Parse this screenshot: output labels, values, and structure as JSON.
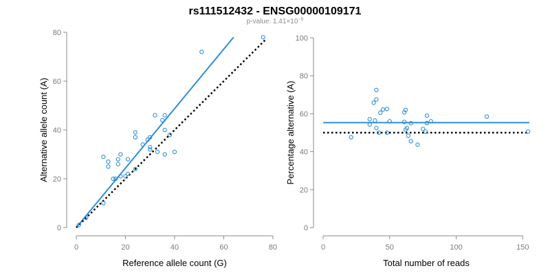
{
  "figure": {
    "title": "rs111512432 - ENSG00000109171",
    "subtitle_prefix": "p-value: 1.41×10",
    "subtitle_exponent": "−5"
  },
  "chart_data": [
    {
      "type": "scatter",
      "xlabel": "Reference allele count (G)",
      "ylabel": "Alternative allele count (A)",
      "xlim": [
        0,
        80
      ],
      "ylim": [
        0,
        80
      ],
      "xticks": [
        0,
        20,
        40,
        60,
        80
      ],
      "yticks": [
        0,
        20,
        40,
        60,
        80
      ],
      "grid": false,
      "point_color": "#2b8ddc",
      "points": [
        {
          "x": 1,
          "y": 1
        },
        {
          "x": 4,
          "y": 4
        },
        {
          "x": 11,
          "y": 10
        },
        {
          "x": 11,
          "y": 29
        },
        {
          "x": 13,
          "y": 27
        },
        {
          "x": 13,
          "y": 25
        },
        {
          "x": 15,
          "y": 20
        },
        {
          "x": 16,
          "y": 20
        },
        {
          "x": 17,
          "y": 28
        },
        {
          "x": 17,
          "y": 26
        },
        {
          "x": 18,
          "y": 30
        },
        {
          "x": 18,
          "y": 21
        },
        {
          "x": 20,
          "y": 21
        },
        {
          "x": 21,
          "y": 28
        },
        {
          "x": 21,
          "y": 22
        },
        {
          "x": 24,
          "y": 24
        },
        {
          "x": 24,
          "y": 39
        },
        {
          "x": 24,
          "y": 37
        },
        {
          "x": 27,
          "y": 34
        },
        {
          "x": 29,
          "y": 36
        },
        {
          "x": 30,
          "y": 37
        },
        {
          "x": 30,
          "y": 33
        },
        {
          "x": 30,
          "y": 32
        },
        {
          "x": 32,
          "y": 46
        },
        {
          "x": 33,
          "y": 31
        },
        {
          "x": 35,
          "y": 44
        },
        {
          "x": 36,
          "y": 46
        },
        {
          "x": 36,
          "y": 40
        },
        {
          "x": 36,
          "y": 30
        },
        {
          "x": 38,
          "y": 38
        },
        {
          "x": 40,
          "y": 31
        },
        {
          "x": 51,
          "y": 72
        },
        {
          "x": 76,
          "y": 78
        }
      ],
      "lines": [
        {
          "role": "fit",
          "color": "#2b8ddc",
          "x": [
            0,
            64
          ],
          "y": [
            0,
            78
          ]
        },
        {
          "role": "reference",
          "color": "#000000",
          "style": "dotted",
          "x": [
            0,
            77
          ],
          "y": [
            0,
            77
          ]
        }
      ]
    },
    {
      "type": "scatter",
      "xlabel": "Total number of reads",
      "ylabel": "Percentage alternative (A)",
      "xlim": [
        0,
        155
      ],
      "ylim": [
        0,
        100
      ],
      "xticks": [
        0,
        50,
        100,
        150
      ],
      "yticks": [
        0,
        20,
        40,
        60,
        80,
        100
      ],
      "grid": false,
      "point_color": "#2b8ddc",
      "points": [
        {
          "x": 21,
          "y": 47.6
        },
        {
          "x": 35,
          "y": 54.3
        },
        {
          "x": 35,
          "y": 57.1
        },
        {
          "x": 38,
          "y": 65.8
        },
        {
          "x": 39,
          "y": 56.4
        },
        {
          "x": 40,
          "y": 67.5
        },
        {
          "x": 40,
          "y": 72.5
        },
        {
          "x": 40,
          "y": 52.5
        },
        {
          "x": 42,
          "y": 50.0
        },
        {
          "x": 43,
          "y": 60.5
        },
        {
          "x": 45,
          "y": 62.2
        },
        {
          "x": 48,
          "y": 50.0
        },
        {
          "x": 48,
          "y": 62.5
        },
        {
          "x": 50,
          "y": 56.0
        },
        {
          "x": 61,
          "y": 60.7
        },
        {
          "x": 61,
          "y": 55.7
        },
        {
          "x": 62,
          "y": 62.0
        },
        {
          "x": 62,
          "y": 51.6
        },
        {
          "x": 63,
          "y": 52.4
        },
        {
          "x": 64,
          "y": 48.4
        },
        {
          "x": 66,
          "y": 45.5
        },
        {
          "x": 66,
          "y": 55.0
        },
        {
          "x": 71,
          "y": 43.7
        },
        {
          "x": 75,
          "y": 52.0
        },
        {
          "x": 77,
          "y": 50.6
        },
        {
          "x": 78,
          "y": 59.0
        },
        {
          "x": 78,
          "y": 55.1
        },
        {
          "x": 81,
          "y": 56.0
        },
        {
          "x": 123,
          "y": 58.5
        },
        {
          "x": 154,
          "y": 50.6
        }
      ],
      "lines": [
        {
          "role": "fit",
          "color": "#2b8ddc",
          "x": [
            0,
            155
          ],
          "y": [
            55.3,
            55.3
          ]
        },
        {
          "role": "reference",
          "color": "#000000",
          "style": "dotted",
          "x": [
            0,
            155
          ],
          "y": [
            50,
            50
          ]
        }
      ]
    }
  ]
}
